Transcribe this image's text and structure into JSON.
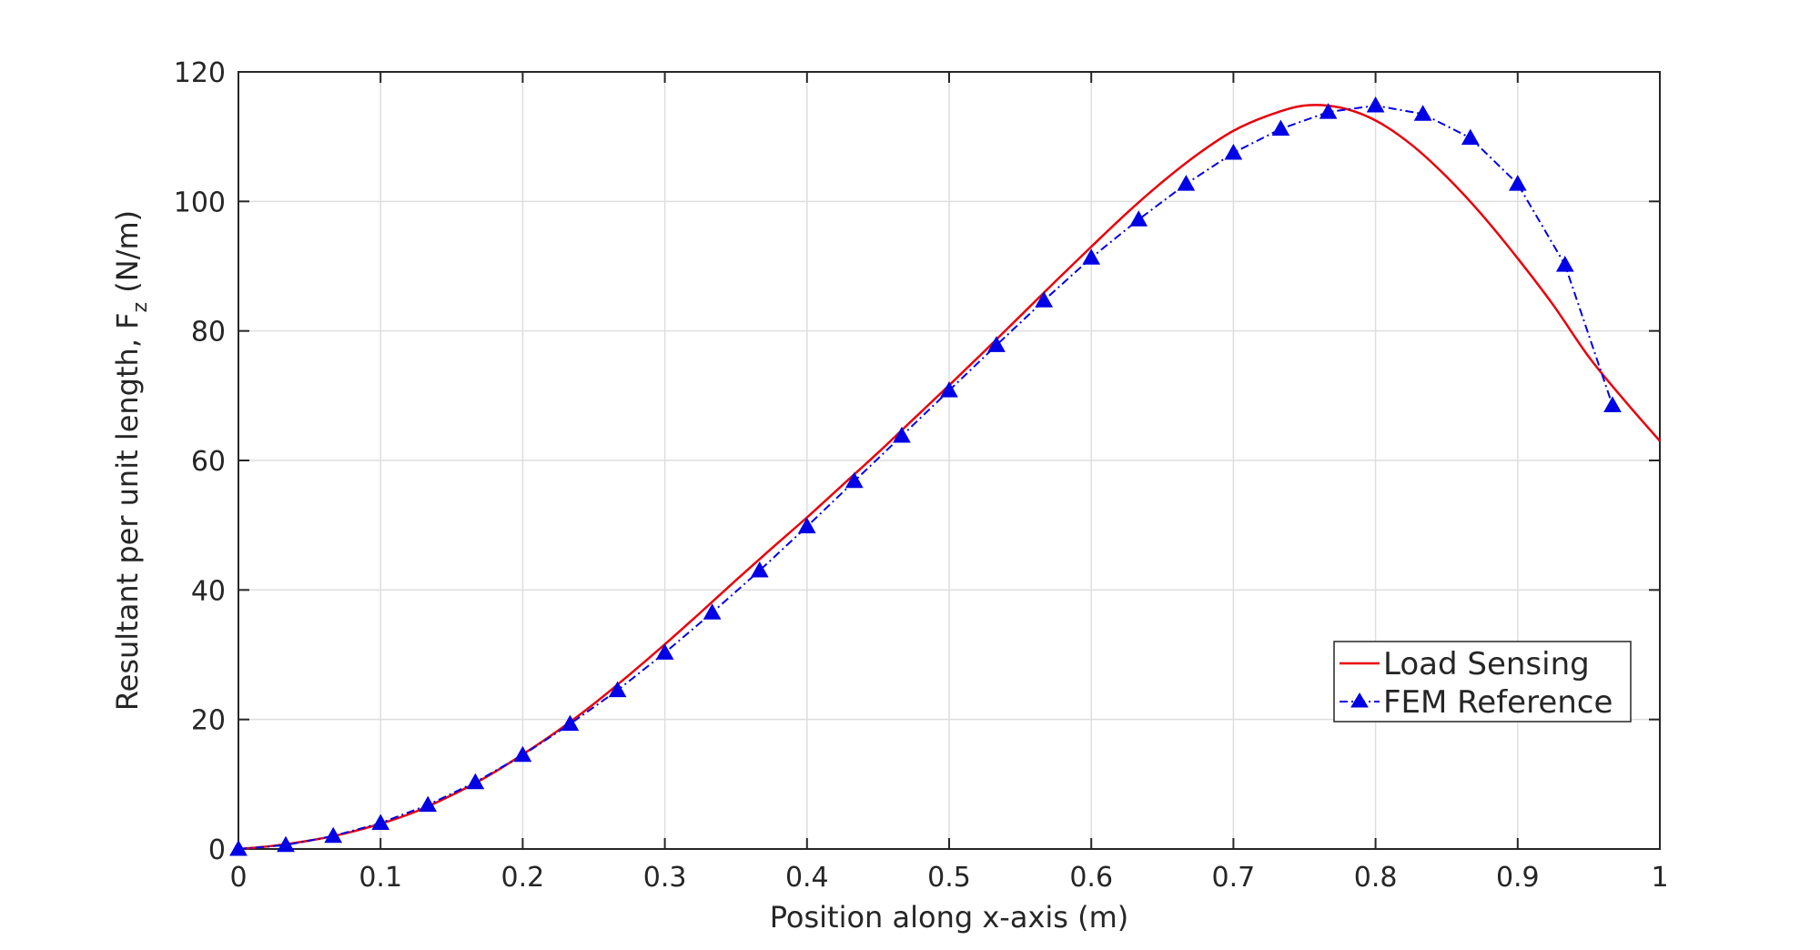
{
  "chart_data": {
    "type": "line",
    "xlabel": "Position along x-axis (m)",
    "ylabel": "Resultant per unit length, F",
    "ylabel_subscript": "z",
    "ylabel_unit": " (N/m)",
    "xlim": [
      0,
      1
    ],
    "ylim": [
      0,
      120
    ],
    "x_ticks": [
      "0",
      "0.1",
      "0.2",
      "0.3",
      "0.4",
      "0.5",
      "0.6",
      "0.7",
      "0.8",
      "0.9",
      "1"
    ],
    "y_ticks": [
      "0",
      "20",
      "40",
      "60",
      "80",
      "100",
      "120"
    ],
    "grid": true,
    "legend_position": "bottom-right",
    "series": [
      {
        "name": "Load Sensing",
        "style": "solid",
        "color": "#e8000b",
        "x": [
          0.0,
          0.025,
          0.05,
          0.075,
          0.1,
          0.125,
          0.15,
          0.175,
          0.2,
          0.225,
          0.25,
          0.275,
          0.3,
          0.325,
          0.35,
          0.375,
          0.4,
          0.425,
          0.45,
          0.475,
          0.5,
          0.525,
          0.55,
          0.575,
          0.6,
          0.625,
          0.65,
          0.675,
          0.7,
          0.725,
          0.75,
          0.775,
          0.8,
          0.825,
          0.85,
          0.875,
          0.9,
          0.925,
          0.95,
          0.975,
          1.0
        ],
        "values": [
          0.0,
          0.5,
          1.3,
          2.4,
          3.9,
          5.8,
          8.3,
          11.2,
          14.6,
          18.3,
          22.4,
          26.9,
          31.6,
          36.5,
          41.5,
          46.4,
          51.2,
          56.2,
          61.2,
          66.4,
          71.6,
          76.9,
          82.3,
          87.7,
          93.0,
          98.2,
          103.0,
          107.3,
          110.9,
          113.3,
          114.8,
          114.5,
          112.5,
          108.8,
          103.8,
          97.9,
          91.2,
          84.0,
          76.0,
          69.3,
          63.0
        ]
      },
      {
        "name": "FEM Reference",
        "style": "dash-dot",
        "marker": "triangle",
        "color": "#0000e6",
        "x": [
          0.0,
          0.0333,
          0.0667,
          0.1,
          0.1333,
          0.1667,
          0.2,
          0.2333,
          0.2667,
          0.3,
          0.3333,
          0.3667,
          0.4,
          0.4333,
          0.4667,
          0.5,
          0.5333,
          0.5667,
          0.6,
          0.6333,
          0.6667,
          0.7,
          0.7333,
          0.7667,
          0.8,
          0.8333,
          0.8667,
          0.9,
          0.9333,
          0.9667
        ],
        "values": [
          0.0,
          0.6,
          2.0,
          4.0,
          6.8,
          10.3,
          14.5,
          19.3,
          24.5,
          30.3,
          36.5,
          43.0,
          49.8,
          56.8,
          63.8,
          70.8,
          77.8,
          84.7,
          91.3,
          97.2,
          102.7,
          107.5,
          111.2,
          113.8,
          114.8,
          113.5,
          109.8,
          102.7,
          90.2,
          68.5
        ]
      }
    ]
  }
}
